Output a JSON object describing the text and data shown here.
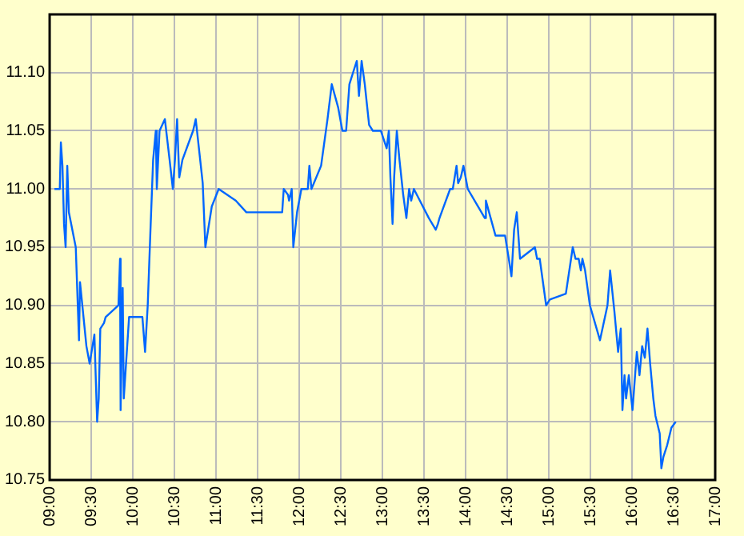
{
  "chart_data": {
    "type": "line",
    "grid": true,
    "legend": false,
    "marker": "none",
    "line_style": "solid",
    "xlim": [
      9,
      17
    ],
    "xticks": [
      {
        "value": 9,
        "label": "09:00"
      },
      {
        "value": 9.5,
        "label": "09:30"
      },
      {
        "value": 10,
        "label": "10:00"
      },
      {
        "value": 10.5,
        "label": "10:30"
      },
      {
        "value": 11,
        "label": "11:00"
      },
      {
        "value": 11.5,
        "label": "11:30"
      },
      {
        "value": 12,
        "label": "12:00"
      },
      {
        "value": 12.5,
        "label": "12:30"
      },
      {
        "value": 13,
        "label": "13:00"
      },
      {
        "value": 13.5,
        "label": "13:30"
      },
      {
        "value": 14,
        "label": "14:00"
      },
      {
        "value": 14.5,
        "label": "14:30"
      },
      {
        "value": 15,
        "label": "15:00"
      },
      {
        "value": 15.5,
        "label": "15:30"
      },
      {
        "value": 16,
        "label": "16:00"
      },
      {
        "value": 16.5,
        "label": "16:30"
      },
      {
        "value": 17,
        "label": "17:00"
      }
    ],
    "ylim": [
      10.75,
      11.15
    ],
    "yticks": [
      {
        "value": 10.75,
        "label": "10.75"
      },
      {
        "value": 10.8,
        "label": "10.80"
      },
      {
        "value": 10.85,
        "label": "10.85"
      },
      {
        "value": 10.9,
        "label": "10.90"
      },
      {
        "value": 10.95,
        "label": "10.95"
      },
      {
        "value": 11,
        "label": "11.00"
      },
      {
        "value": 11.05,
        "label": "11.05"
      },
      {
        "value": 11.1,
        "label": "11.10"
      }
    ],
    "x": [
      9.058,
      9.122,
      9.135,
      9.154,
      9.173,
      9.192,
      9.212,
      9.231,
      9.314,
      9.353,
      9.365,
      9.442,
      9.481,
      9.538,
      9.571,
      9.59,
      9.609,
      9.654,
      9.673,
      9.827,
      9.846,
      9.853,
      9.878,
      9.891,
      9.955,
      10.115,
      10.147,
      10.179,
      10.212,
      10.244,
      10.276,
      10.288,
      10.321,
      10.385,
      10.442,
      10.481,
      10.506,
      10.532,
      10.558,
      10.596,
      10.724,
      10.756,
      10.84,
      10.872,
      10.949,
      11.032,
      11.237,
      11.365,
      11.795,
      11.814,
      11.865,
      11.878,
      11.91,
      11.929,
      11.974,
      12.026,
      12.103,
      12.122,
      12.147,
      12.263,
      12.34,
      12.391,
      12.468,
      12.519,
      12.564,
      12.603,
      12.647,
      12.692,
      12.718,
      12.75,
      12.788,
      12.84,
      12.885,
      12.981,
      13.051,
      13.077,
      13.096,
      13.122,
      13.141,
      13.173,
      13.205,
      13.25,
      13.288,
      13.321,
      13.346,
      13.378,
      13.558,
      13.641,
      13.667,
      13.686,
      13.814,
      13.846,
      13.891,
      13.91,
      13.942,
      13.974,
      14.026,
      14.231,
      14.244,
      14.282,
      14.359,
      14.474,
      14.519,
      14.551,
      14.583,
      14.615,
      14.654,
      14.744,
      14.833,
      14.859,
      14.891,
      14.968,
      15.013,
      15.205,
      15.288,
      15.321,
      15.359,
      15.385,
      15.404,
      15.436,
      15.494,
      15.615,
      15.705,
      15.737,
      15.788,
      15.833,
      15.865,
      15.885,
      15.91,
      15.929,
      15.962,
      16.006,
      16.058,
      16.09,
      16.122,
      16.154,
      16.186,
      16.218,
      16.256,
      16.282,
      16.333,
      16.353,
      16.378,
      16.423,
      16.474,
      16.526
    ],
    "series": [
      {
        "color": "#0066ff",
        "values": [
          11.0,
          11.0,
          11.04,
          11.02,
          10.97,
          10.95,
          11.02,
          10.98,
          10.95,
          10.87,
          10.92,
          10.865,
          10.85,
          10.875,
          10.8,
          10.82,
          10.88,
          10.885,
          10.89,
          10.9,
          10.94,
          10.81,
          10.915,
          10.82,
          10.89,
          10.89,
          10.86,
          10.9,
          10.965,
          11.025,
          11.05,
          11.0,
          11.05,
          11.06,
          11.025,
          11.0,
          11.025,
          11.06,
          11.01,
          11.025,
          11.05,
          11.06,
          11.005,
          10.95,
          10.985,
          11.0,
          10.99,
          10.98,
          10.98,
          11.0,
          10.995,
          10.99,
          11.0,
          10.95,
          10.98,
          11.0,
          11.0,
          11.02,
          11.0,
          11.02,
          11.06,
          11.09,
          11.07,
          11.05,
          11.05,
          11.09,
          11.1,
          11.11,
          11.08,
          11.11,
          11.09,
          11.055,
          11.05,
          11.05,
          11.035,
          11.05,
          11.01,
          10.97,
          11.01,
          11.05,
          11.025,
          10.995,
          10.975,
          11.0,
          10.99,
          11.0,
          10.975,
          10.965,
          10.97,
          10.975,
          11.0,
          11.0,
          11.02,
          11.005,
          11.01,
          11.02,
          11.0,
          10.975,
          10.99,
          10.98,
          10.96,
          10.96,
          10.94,
          10.925,
          10.965,
          10.98,
          10.94,
          10.945,
          10.95,
          10.94,
          10.94,
          10.9,
          10.905,
          10.91,
          10.95,
          10.94,
          10.94,
          10.93,
          10.94,
          10.93,
          10.9,
          10.87,
          10.9,
          10.93,
          10.895,
          10.86,
          10.88,
          10.81,
          10.84,
          10.82,
          10.84,
          10.81,
          10.86,
          10.84,
          10.865,
          10.855,
          10.88,
          10.85,
          10.82,
          10.805,
          10.79,
          10.76,
          10.77,
          10.78,
          10.795,
          10.8
        ]
      }
    ]
  }
}
